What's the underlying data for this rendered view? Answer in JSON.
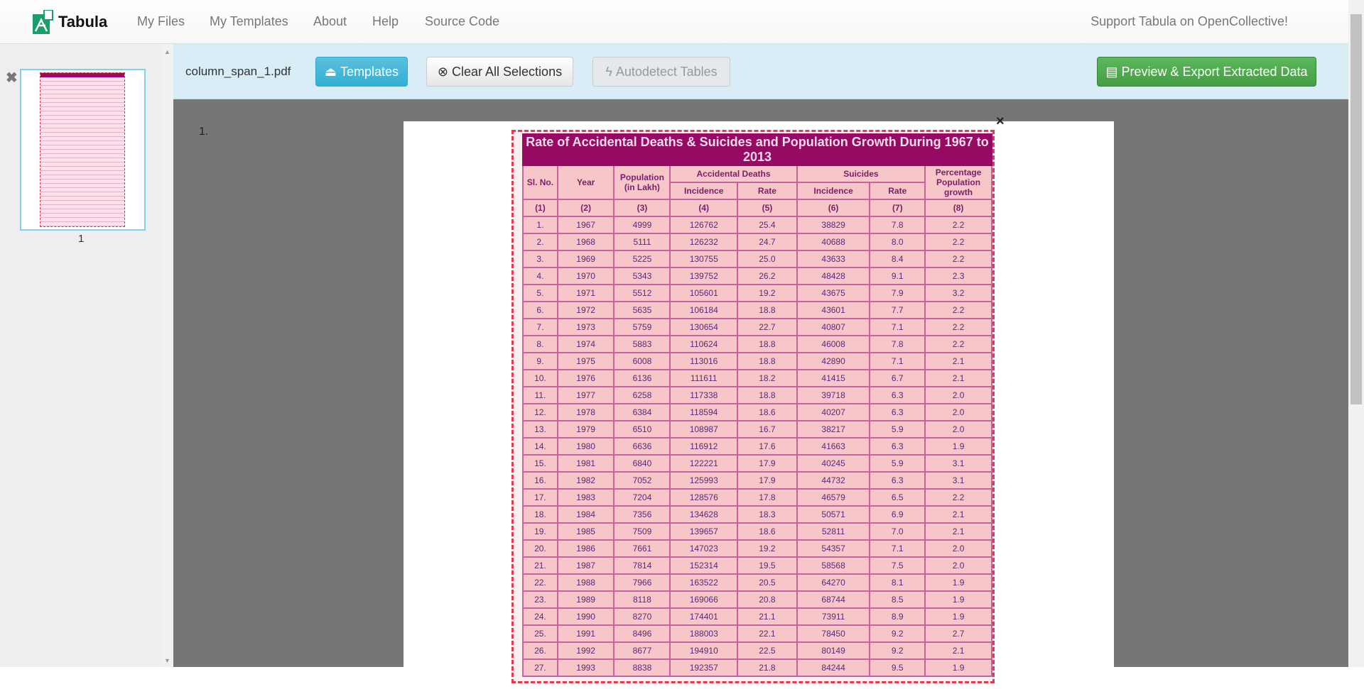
{
  "navbar": {
    "brand": "Tabula",
    "links": [
      "My Files",
      "My Templates",
      "About",
      "Help",
      "Source Code"
    ],
    "support": "Support Tabula on OpenCollective!"
  },
  "sidebar": {
    "thumbnail_label": "1"
  },
  "toolbar": {
    "filename": "column_span_1.pdf",
    "templates": "Templates",
    "clear": "Clear All Selections",
    "autodetect": "Autodetect Tables",
    "export": "Preview & Export Extracted Data"
  },
  "main": {
    "page_number": "1.",
    "close": "×"
  },
  "colors": {
    "accent_info": "#5bc0de",
    "accent_success": "#5cb85c",
    "selection_border": "#e8384f",
    "table_title_bg": "#970a63"
  },
  "table": {
    "title": "Rate of Accidental Deaths & Suicides and Population Growth During 1967 to 2013",
    "headers": {
      "sl": "Sl. No.",
      "year": "Year",
      "population": "Population (in Lakh)",
      "accidental": "Accidental Deaths",
      "suicides": "Suicides",
      "growth": "Percentage Population growth",
      "incidence": "Incidence",
      "rate": "Rate"
    },
    "col_numbers": [
      "(1)",
      "(2)",
      "(3)",
      "(4)",
      "(5)",
      "(6)",
      "(7)",
      "(8)"
    ],
    "rows": [
      [
        "1.",
        "1967",
        "4999",
        "126762",
        "25.4",
        "38829",
        "7.8",
        "2.2"
      ],
      [
        "2.",
        "1968",
        "5111",
        "126232",
        "24.7",
        "40688",
        "8.0",
        "2.2"
      ],
      [
        "3.",
        "1969",
        "5225",
        "130755",
        "25.0",
        "43633",
        "8.4",
        "2.2"
      ],
      [
        "4.",
        "1970",
        "5343",
        "139752",
        "26.2",
        "48428",
        "9.1",
        "2.3"
      ],
      [
        "5.",
        "1971",
        "5512",
        "105601",
        "19.2",
        "43675",
        "7.9",
        "3.2"
      ],
      [
        "6.",
        "1972",
        "5635",
        "106184",
        "18.8",
        "43601",
        "7.7",
        "2.2"
      ],
      [
        "7.",
        "1973",
        "5759",
        "130654",
        "22.7",
        "40807",
        "7.1",
        "2.2"
      ],
      [
        "8.",
        "1974",
        "5883",
        "110624",
        "18.8",
        "46008",
        "7.8",
        "2.2"
      ],
      [
        "9.",
        "1975",
        "6008",
        "113016",
        "18.8",
        "42890",
        "7.1",
        "2.1"
      ],
      [
        "10.",
        "1976",
        "6136",
        "111611",
        "18.2",
        "41415",
        "6.7",
        "2.1"
      ],
      [
        "11.",
        "1977",
        "6258",
        "117338",
        "18.8",
        "39718",
        "6.3",
        "2.0"
      ],
      [
        "12.",
        "1978",
        "6384",
        "118594",
        "18.6",
        "40207",
        "6.3",
        "2.0"
      ],
      [
        "13.",
        "1979",
        "6510",
        "108987",
        "16.7",
        "38217",
        "5.9",
        "2.0"
      ],
      [
        "14.",
        "1980",
        "6636",
        "116912",
        "17.6",
        "41663",
        "6.3",
        "1.9"
      ],
      [
        "15.",
        "1981",
        "6840",
        "122221",
        "17.9",
        "40245",
        "5.9",
        "3.1"
      ],
      [
        "16.",
        "1982",
        "7052",
        "125993",
        "17.9",
        "44732",
        "6.3",
        "3.1"
      ],
      [
        "17.",
        "1983",
        "7204",
        "128576",
        "17.8",
        "46579",
        "6.5",
        "2.2"
      ],
      [
        "18.",
        "1984",
        "7356",
        "134628",
        "18.3",
        "50571",
        "6.9",
        "2.1"
      ],
      [
        "19.",
        "1985",
        "7509",
        "139657",
        "18.6",
        "52811",
        "7.0",
        "2.1"
      ],
      [
        "20.",
        "1986",
        "7661",
        "147023",
        "19.2",
        "54357",
        "7.1",
        "2.0"
      ],
      [
        "21.",
        "1987",
        "7814",
        "152314",
        "19.5",
        "58568",
        "7.5",
        "2.0"
      ],
      [
        "22.",
        "1988",
        "7966",
        "163522",
        "20.5",
        "64270",
        "8.1",
        "1.9"
      ],
      [
        "23.",
        "1989",
        "8118",
        "169066",
        "20.8",
        "68744",
        "8.5",
        "1.9"
      ],
      [
        "24.",
        "1990",
        "8270",
        "174401",
        "21.1",
        "73911",
        "8.9",
        "1.9"
      ],
      [
        "25.",
        "1991",
        "8496",
        "188003",
        "22.1",
        "78450",
        "9.2",
        "2.7"
      ],
      [
        "26.",
        "1992",
        "8677",
        "194910",
        "22.5",
        "80149",
        "9.2",
        "2.1"
      ],
      [
        "27.",
        "1993",
        "8838",
        "192357",
        "21.8",
        "84244",
        "9.5",
        "1.9"
      ]
    ]
  }
}
